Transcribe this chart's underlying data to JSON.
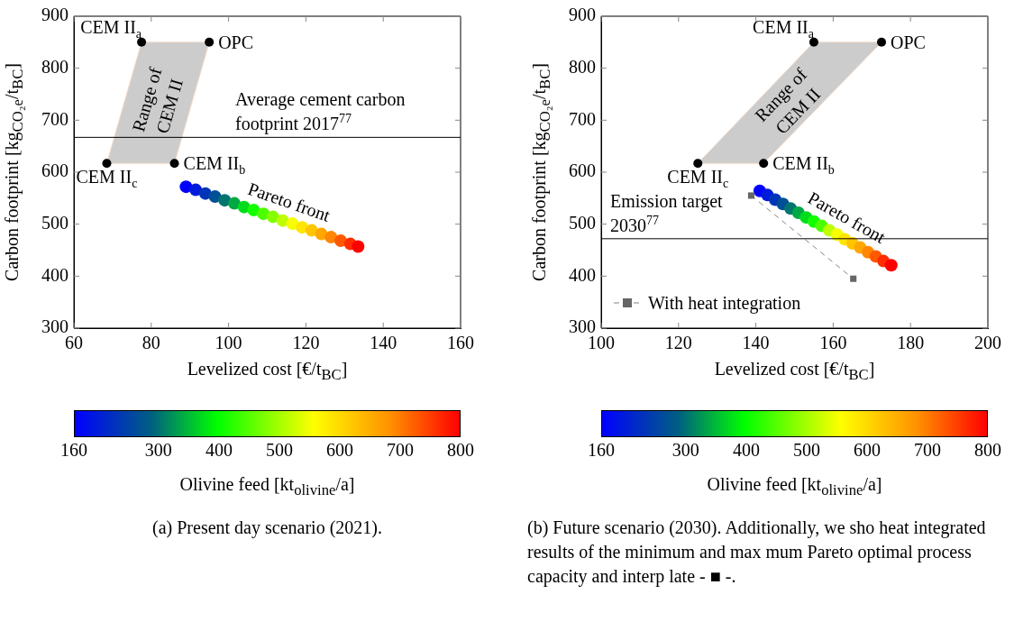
{
  "chart_data": [
    {
      "type": "scatter",
      "xlabel": "Levelized cost [€/t$_{BC}$]",
      "ylabel": "Carbon footprint [kg$_{CO₂e}$/t$_{BC}$]",
      "xlim": [
        60,
        160
      ],
      "xticks": [
        60,
        80,
        100,
        120,
        140,
        160
      ],
      "ylim": [
        300,
        900
      ],
      "yticks": [
        300,
        400,
        500,
        600,
        700,
        800,
        900
      ],
      "clabel": "Olivine feed [kt$_{olivine}$/a]",
      "clim": [
        160,
        800
      ],
      "cticks": [
        160,
        300,
        400,
        500,
        600,
        700,
        800
      ],
      "ref_lines": [
        {
          "axis": "y",
          "value": 667,
          "label": "Average cement carbon footprint 2017$^{77}$",
          "color": "#000000"
        }
      ],
      "series": [
        {
          "type": "area",
          "color": "#cccccc",
          "x": [
            68.5,
            77.5,
            95,
            86,
            68.5
          ],
          "values": [
            617,
            850,
            850,
            617,
            617
          ]
        },
        {
          "type": "scatter",
          "color": "#000000",
          "x": [
            68.5,
            77.5,
            95,
            86
          ],
          "values": [
            617,
            850,
            850,
            617
          ]
        },
        {
          "type": "scatter",
          "x": [
            89,
            91.5,
            94,
            96.5,
            99,
            101.5,
            104,
            106.5,
            109,
            111.5,
            114,
            116.5,
            119,
            121.5,
            124,
            126.5,
            129,
            131.5,
            133.5
          ],
          "values": [
            572,
            566,
            559,
            553,
            546,
            540,
            533,
            527,
            520,
            514,
            507,
            501,
            494,
            488,
            481,
            475,
            468,
            462,
            457
          ],
          "colors": [
            "#0000ff",
            "#001bdb",
            "#0035b9",
            "#005095",
            "#00756f",
            "#00a945",
            "#00dc1c",
            "#13ff00",
            "#4bff00",
            "#85ff00",
            "#beff00",
            "#f6ff00",
            "#ffe500",
            "#ffc600",
            "#ffa700",
            "#ff8600",
            "#ff5900",
            "#ff2d00",
            "#ff0000"
          ]
        }
      ],
      "annotations": [
        {
          "text": "CEM II$_{c}$",
          "x": 68.5,
          "y": 617
        },
        {
          "text": "CEM II$_{a}$",
          "x": 77.5,
          "y": 850
        },
        {
          "text": "OPC",
          "x": 95,
          "y": 850
        },
        {
          "text": "CEM II$_{b}$",
          "x": 86,
          "y": 617
        },
        "Range of CEM II",
        "Pareto front",
        "(a) Present day scenario (2021)."
      ]
    },
    {
      "type": "scatter",
      "xlabel": "Levelized cost [€/t$_{BC}$]",
      "ylabel": "Carbon footprint [kg$_{CO₂e}$/t$_{BC}$]",
      "xlim": [
        100,
        200
      ],
      "xticks": [
        100,
        120,
        140,
        160,
        180,
        200
      ],
      "ylim": [
        300,
        900
      ],
      "yticks": [
        300,
        400,
        500,
        600,
        700,
        800,
        900
      ],
      "clabel": "Olivine feed [kt$_{olivine}$/a]",
      "clim": [
        160,
        800
      ],
      "cticks": [
        160,
        300,
        400,
        500,
        600,
        700,
        800
      ],
      "legend": "bottom left",
      "ref_lines": [
        {
          "axis": "y",
          "value": 472,
          "label": "Emission target 2030$^{77}$",
          "color": "#000000"
        }
      ],
      "series": [
        {
          "type": "area",
          "color": "#cccccc",
          "x": [
            125,
            155,
            172.5,
            142,
            125
          ],
          "values": [
            617,
            850,
            850,
            617,
            617
          ]
        },
        {
          "type": "scatter",
          "color": "#000000",
          "x": [
            125,
            155,
            172.5,
            142
          ],
          "values": [
            617,
            850,
            850,
            617
          ]
        },
        {
          "type": "scatter",
          "x": [
            141,
            143,
            145,
            147,
            149,
            151,
            153,
            155,
            157,
            159,
            161,
            163,
            165,
            167,
            169,
            171,
            173,
            175
          ],
          "values": [
            564,
            556,
            547,
            539,
            530,
            522,
            513,
            505,
            497,
            488,
            480,
            471,
            463,
            455,
            446,
            438,
            429,
            421
          ],
          "colors": [
            "#0000ff",
            "#001bdb",
            "#0035b9",
            "#005095",
            "#00756f",
            "#00a945",
            "#00dc1c",
            "#13ff00",
            "#4bff00",
            "#beff00",
            "#f6ff00",
            "#ffe500",
            "#ffc600",
            "#ffa700",
            "#ff8600",
            "#ff5900",
            "#ff2d00",
            "#ff0000"
          ]
        },
        {
          "type": "line",
          "name": "With heat integration",
          "color": "#666666",
          "x": [
            138.8,
            165.2
          ],
          "values": [
            555,
            395
          ],
          "marker": "square",
          "line_style": "dashed"
        }
      ],
      "annotations": [
        {
          "text": "CEM II$_{c}$",
          "x": 125,
          "y": 617
        },
        {
          "text": "CEM II$_{a}$",
          "x": 155,
          "y": 850
        },
        {
          "text": "OPC",
          "x": 172.5,
          "y": 850
        },
        {
          "text": "CEM II$_{b}$",
          "x": 142,
          "y": 617
        },
        "Range of CEM II",
        "Pareto front",
        "(b) Future scenario (2030). Additionally, we sho heat integrated results of the minimum and max mum Pareto optimal process capacity and interp late - ■ -."
      ]
    }
  ]
}
